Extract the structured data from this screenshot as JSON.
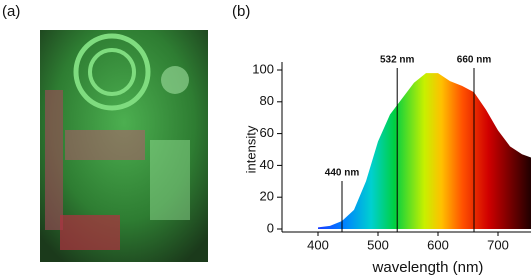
{
  "panel_labels": [
    "(a)",
    "(b)"
  ],
  "chart_data": {
    "type": "area",
    "xlabel": "wavelength (nm)",
    "ylabel": "intensity",
    "x": [
      400,
      420,
      440,
      460,
      480,
      500,
      520,
      540,
      560,
      580,
      600,
      620,
      640,
      660,
      680,
      700,
      720,
      740,
      755
    ],
    "values": [
      1,
      2,
      5,
      12,
      30,
      55,
      72,
      82,
      92,
      98,
      98,
      93,
      90,
      86,
      75,
      62,
      52,
      47,
      45
    ],
    "xlim": [
      340,
      755
    ],
    "ylim": [
      0,
      100
    ],
    "xticks": [
      400,
      500,
      600,
      700
    ],
    "yticks": [
      0,
      20,
      40,
      60,
      80,
      100
    ],
    "annotations": [
      {
        "x": 440,
        "label": "440 nm"
      },
      {
        "x": 532,
        "label": "532 nm"
      },
      {
        "x": 660,
        "label": "660 nm"
      }
    ]
  }
}
